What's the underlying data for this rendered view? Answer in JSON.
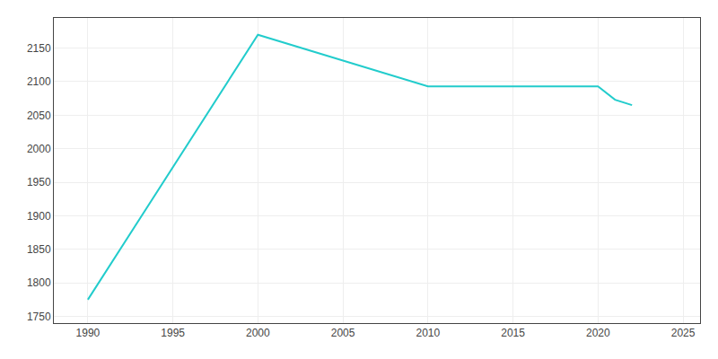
{
  "chart_data": {
    "type": "line",
    "x": [
      1990,
      2000,
      2010,
      2020,
      2021,
      2022
    ],
    "values": [
      1775,
      2170,
      2093,
      2093,
      2073,
      2065
    ],
    "color": "#22CCCC",
    "xlim": [
      1988,
      2026
    ],
    "ylim": [
      1740,
      2195
    ],
    "xticks": [
      1990,
      1995,
      2000,
      2005,
      2010,
      2015,
      2020,
      2025
    ],
    "yticks": [
      1750,
      1800,
      1850,
      1900,
      1950,
      2000,
      2050,
      2100,
      2150
    ],
    "grid": true
  }
}
